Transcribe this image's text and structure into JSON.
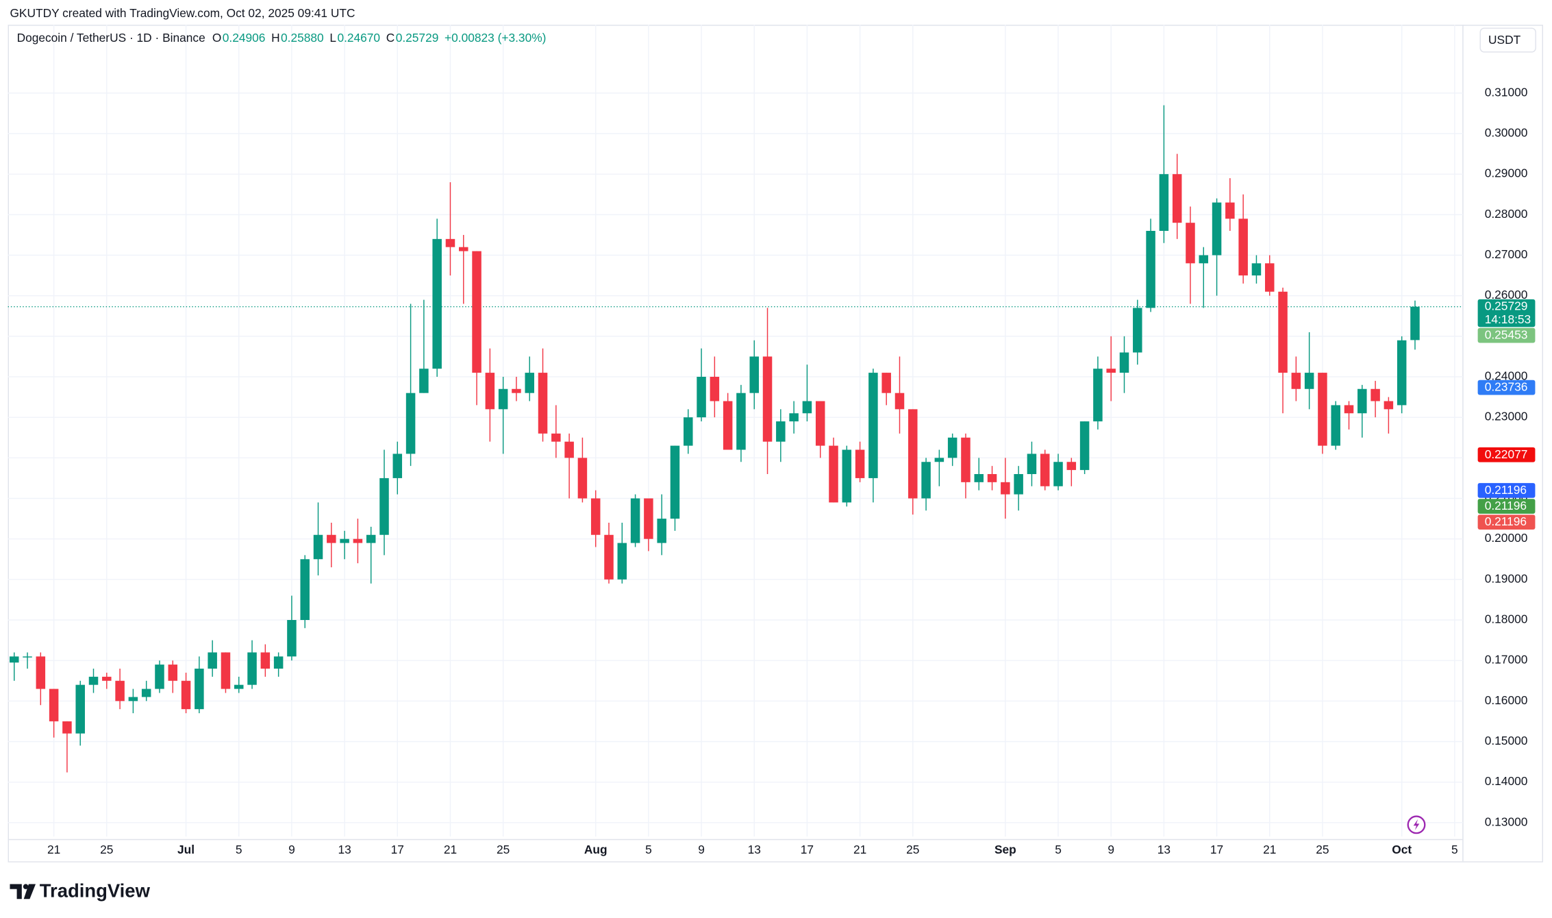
{
  "header": "GKUTDY created with TradingView.com, Oct 02, 2025 09:41 UTC",
  "legend": {
    "symbol": "Dogecoin / TetherUS · 1D · Binance",
    "open_label": "O",
    "open": "0.24906",
    "high_label": "H",
    "high": "0.25880",
    "low_label": "L",
    "low": "0.24670",
    "close_label": "C",
    "close": "0.25729",
    "change": "+0.00823 (+3.30%)"
  },
  "currency_button": "USDT",
  "brand": "TradingView",
  "chart_data": {
    "type": "candlestick",
    "up_color": "#089981",
    "down_color": "#f23645",
    "x": [
      "2025-06-18",
      "2025-06-19",
      "2025-06-20",
      "2025-06-21",
      "2025-06-22",
      "2025-06-23",
      "2025-06-24",
      "2025-06-25",
      "2025-06-26",
      "2025-06-27",
      "2025-06-28",
      "2025-06-29",
      "2025-06-30",
      "2025-07-01",
      "2025-07-02",
      "2025-07-03",
      "2025-07-04",
      "2025-07-05",
      "2025-07-06",
      "2025-07-07",
      "2025-07-08",
      "2025-07-09",
      "2025-07-10",
      "2025-07-11",
      "2025-07-12",
      "2025-07-13",
      "2025-07-14",
      "2025-07-15",
      "2025-07-16",
      "2025-07-17",
      "2025-07-18",
      "2025-07-19",
      "2025-07-20",
      "2025-07-21",
      "2025-07-22",
      "2025-07-23",
      "2025-07-24",
      "2025-07-25",
      "2025-07-26",
      "2025-07-27",
      "2025-07-28",
      "2025-07-29",
      "2025-07-30",
      "2025-07-31",
      "2025-08-01",
      "2025-08-02",
      "2025-08-03",
      "2025-08-04",
      "2025-08-05",
      "2025-08-06",
      "2025-08-07",
      "2025-08-08",
      "2025-08-09",
      "2025-08-10",
      "2025-08-11",
      "2025-08-12",
      "2025-08-13",
      "2025-08-14",
      "2025-08-15",
      "2025-08-16",
      "2025-08-17",
      "2025-08-18",
      "2025-08-19",
      "2025-08-20",
      "2025-08-21",
      "2025-08-22",
      "2025-08-23",
      "2025-08-24",
      "2025-08-25",
      "2025-08-26",
      "2025-08-27",
      "2025-08-28",
      "2025-08-29",
      "2025-08-30",
      "2025-08-31",
      "2025-09-01",
      "2025-09-02",
      "2025-09-03",
      "2025-09-04",
      "2025-09-05",
      "2025-09-06",
      "2025-09-07",
      "2025-09-08",
      "2025-09-09",
      "2025-09-10",
      "2025-09-11",
      "2025-09-12",
      "2025-09-13",
      "2025-09-14",
      "2025-09-15",
      "2025-09-16",
      "2025-09-17",
      "2025-09-18",
      "2025-09-19",
      "2025-09-20",
      "2025-09-21",
      "2025-09-22",
      "2025-09-23",
      "2025-09-24",
      "2025-09-25",
      "2025-09-26",
      "2025-09-27",
      "2025-09-28",
      "2025-09-29",
      "2025-09-30",
      "2025-10-01",
      "2025-10-02"
    ],
    "open": [
      0.1695,
      0.171,
      0.171,
      0.163,
      0.155,
      0.152,
      0.164,
      0.166,
      0.165,
      0.16,
      0.161,
      0.163,
      0.169,
      0.165,
      0.158,
      0.168,
      0.172,
      0.163,
      0.164,
      0.172,
      0.168,
      0.171,
      0.18,
      0.195,
      0.201,
      0.199,
      0.2,
      0.199,
      0.201,
      0.215,
      0.221,
      0.236,
      0.242,
      0.274,
      0.272,
      0.271,
      0.241,
      0.232,
      0.237,
      0.236,
      0.241,
      0.226,
      0.224,
      0.22,
      0.21,
      0.201,
      0.19,
      0.199,
      0.21,
      0.199,
      0.205,
      0.223,
      0.23,
      0.24,
      0.234,
      0.222,
      0.236,
      0.245,
      0.224,
      0.229,
      0.231,
      0.234,
      0.223,
      0.209,
      0.222,
      0.215,
      0.241,
      0.236,
      0.232,
      0.21,
      0.219,
      0.22,
      0.225,
      0.214,
      0.216,
      0.214,
      0.211,
      0.216,
      0.221,
      0.213,
      0.219,
      0.217,
      0.229,
      0.242,
      0.241,
      0.246,
      0.257,
      0.276,
      0.29,
      0.278,
      0.268,
      0.27,
      0.283,
      0.279,
      0.265,
      0.268,
      0.261,
      0.241,
      0.237,
      0.241,
      0.223,
      0.233,
      0.231,
      0.237,
      0.234,
      0.233,
      0.24906
    ],
    "high": [
      0.172,
      0.172,
      0.172,
      0.163,
      0.155,
      0.165,
      0.168,
      0.167,
      0.168,
      0.163,
      0.165,
      0.17,
      0.17,
      0.167,
      0.171,
      0.175,
      0.172,
      0.166,
      0.175,
      0.174,
      0.172,
      0.186,
      0.196,
      0.209,
      0.204,
      0.202,
      0.205,
      0.203,
      0.222,
      0.224,
      0.258,
      0.259,
      0.279,
      0.288,
      0.275,
      0.271,
      0.247,
      0.24,
      0.24,
      0.245,
      0.247,
      0.233,
      0.226,
      0.225,
      0.212,
      0.204,
      0.204,
      0.211,
      0.21,
      0.211,
      0.223,
      0.232,
      0.247,
      0.245,
      0.236,
      0.238,
      0.249,
      0.257,
      0.232,
      0.234,
      0.243,
      0.234,
      0.225,
      0.223,
      0.224,
      0.242,
      0.241,
      0.245,
      0.232,
      0.22,
      0.222,
      0.226,
      0.226,
      0.22,
      0.218,
      0.22,
      0.218,
      0.224,
      0.222,
      0.221,
      0.22,
      0.229,
      0.245,
      0.25,
      0.25,
      0.259,
      0.279,
      0.307,
      0.295,
      0.282,
      0.272,
      0.284,
      0.289,
      0.285,
      0.27,
      0.27,
      0.262,
      0.245,
      0.251,
      0.241,
      0.234,
      0.234,
      0.238,
      0.239,
      0.235,
      0.25,
      0.2588
    ],
    "low": [
      0.165,
      0.168,
      0.159,
      0.151,
      0.1424,
      0.149,
      0.162,
      0.163,
      0.158,
      0.157,
      0.16,
      0.162,
      0.162,
      0.157,
      0.157,
      0.166,
      0.162,
      0.162,
      0.163,
      0.166,
      0.166,
      0.17,
      0.178,
      0.191,
      0.193,
      0.195,
      0.194,
      0.189,
      0.196,
      0.211,
      0.218,
      0.236,
      0.24,
      0.265,
      0.258,
      0.233,
      0.224,
      0.221,
      0.234,
      0.234,
      0.224,
      0.22,
      0.21,
      0.209,
      0.198,
      0.189,
      0.189,
      0.198,
      0.197,
      0.196,
      0.202,
      0.221,
      0.229,
      0.23,
      0.222,
      0.219,
      0.232,
      0.216,
      0.219,
      0.226,
      0.229,
      0.22,
      0.209,
      0.208,
      0.214,
      0.209,
      0.233,
      0.226,
      0.206,
      0.207,
      0.213,
      0.218,
      0.21,
      0.212,
      0.212,
      0.205,
      0.207,
      0.213,
      0.212,
      0.212,
      0.213,
      0.216,
      0.227,
      0.234,
      0.236,
      0.243,
      0.256,
      0.273,
      0.274,
      0.258,
      0.257,
      0.26,
      0.276,
      0.263,
      0.263,
      0.26,
      0.231,
      0.234,
      0.232,
      0.221,
      0.222,
      0.227,
      0.225,
      0.23,
      0.226,
      0.231,
      0.2467
    ],
    "close": [
      0.171,
      0.171,
      0.163,
      0.155,
      0.152,
      0.164,
      0.166,
      0.165,
      0.16,
      0.161,
      0.163,
      0.169,
      0.165,
      0.158,
      0.168,
      0.172,
      0.163,
      0.164,
      0.172,
      0.168,
      0.171,
      0.18,
      0.195,
      0.201,
      0.199,
      0.2,
      0.199,
      0.201,
      0.215,
      0.221,
      0.236,
      0.242,
      0.274,
      0.272,
      0.271,
      0.241,
      0.232,
      0.237,
      0.236,
      0.241,
      0.226,
      0.224,
      0.22,
      0.21,
      0.201,
      0.19,
      0.199,
      0.21,
      0.2,
      0.205,
      0.223,
      0.23,
      0.24,
      0.234,
      0.222,
      0.236,
      0.245,
      0.224,
      0.229,
      0.231,
      0.234,
      0.223,
      0.209,
      0.222,
      0.215,
      0.241,
      0.236,
      0.232,
      0.21,
      0.219,
      0.22,
      0.225,
      0.214,
      0.216,
      0.214,
      0.211,
      0.216,
      0.221,
      0.213,
      0.219,
      0.217,
      0.229,
      0.242,
      0.241,
      0.246,
      0.257,
      0.276,
      0.29,
      0.278,
      0.268,
      0.27,
      0.283,
      0.279,
      0.265,
      0.268,
      0.261,
      0.241,
      0.237,
      0.241,
      0.223,
      0.233,
      0.231,
      0.237,
      0.234,
      0.232,
      0.249,
      0.25729
    ],
    "xlim": [
      "2025-06-17",
      "2025-10-06"
    ],
    "xticks": [
      {
        "value": "2025-06-21",
        "label": "21"
      },
      {
        "value": "2025-06-25",
        "label": "25"
      },
      {
        "value": "2025-07-01",
        "label": "Jul"
      },
      {
        "value": "2025-07-05",
        "label": "5"
      },
      {
        "value": "2025-07-09",
        "label": "9"
      },
      {
        "value": "2025-07-13",
        "label": "13"
      },
      {
        "value": "2025-07-17",
        "label": "17"
      },
      {
        "value": "2025-07-21",
        "label": "21"
      },
      {
        "value": "2025-07-25",
        "label": "25"
      },
      {
        "value": "2025-08-01",
        "label": "Aug"
      },
      {
        "value": "2025-08-05",
        "label": "5"
      },
      {
        "value": "2025-08-09",
        "label": "9"
      },
      {
        "value": "2025-08-13",
        "label": "13"
      },
      {
        "value": "2025-08-17",
        "label": "17"
      },
      {
        "value": "2025-08-21",
        "label": "21"
      },
      {
        "value": "2025-08-25",
        "label": "25"
      },
      {
        "value": "2025-09-01",
        "label": "Sep"
      },
      {
        "value": "2025-09-05",
        "label": "5"
      },
      {
        "value": "2025-09-09",
        "label": "9"
      },
      {
        "value": "2025-09-13",
        "label": "13"
      },
      {
        "value": "2025-09-17",
        "label": "17"
      },
      {
        "value": "2025-09-21",
        "label": "21"
      },
      {
        "value": "2025-09-25",
        "label": "25"
      },
      {
        "value": "2025-10-01",
        "label": "Oct"
      },
      {
        "value": "2025-10-05",
        "label": "5"
      }
    ],
    "ylim": [
      0.12656,
      0.32685
    ],
    "yticks": [
      {
        "value": 0.13,
        "label": "0.13000"
      },
      {
        "value": 0.14,
        "label": "0.14000"
      },
      {
        "value": 0.15,
        "label": "0.15000"
      },
      {
        "value": 0.16,
        "label": "0.16000"
      },
      {
        "value": 0.17,
        "label": "0.17000"
      },
      {
        "value": 0.18,
        "label": "0.18000"
      },
      {
        "value": 0.19,
        "label": "0.19000"
      },
      {
        "value": 0.2,
        "label": "0.20000"
      },
      {
        "value": 0.21,
        "label": "0.21000"
      },
      {
        "value": 0.22,
        "label": "0.22000"
      },
      {
        "value": 0.23,
        "label": "0.23000"
      },
      {
        "value": 0.24,
        "label": "0.24000"
      },
      {
        "value": 0.25,
        "label": "0.25000"
      },
      {
        "value": 0.26,
        "label": "0.26000"
      },
      {
        "value": 0.27,
        "label": "0.27000"
      },
      {
        "value": 0.28,
        "label": "0.28000"
      },
      {
        "value": 0.29,
        "label": "0.29000"
      },
      {
        "value": 0.3,
        "label": "0.30000"
      },
      {
        "value": 0.31,
        "label": "0.31000"
      }
    ],
    "grid": true,
    "last_price_line": 0.25729,
    "price_markers": [
      {
        "value": 0.25729,
        "label": "0.25729",
        "color": "#089981",
        "countdown": "14:18:53"
      },
      {
        "value": 0.25453,
        "label": "0.25453",
        "color": "#7cc47f"
      },
      {
        "value": 0.23736,
        "label": "0.23736",
        "color": "#2f7cf6"
      },
      {
        "value": 0.22077,
        "label": "0.22077",
        "color": "#f20d0d"
      },
      {
        "value": 0.21196,
        "label": "0.21196",
        "color": "#2962ff"
      },
      {
        "value": 0.21196,
        "label": "0.21196",
        "color": "#43a047"
      },
      {
        "value": 0.21196,
        "label": "0.21196",
        "color": "#ef5350"
      }
    ]
  }
}
